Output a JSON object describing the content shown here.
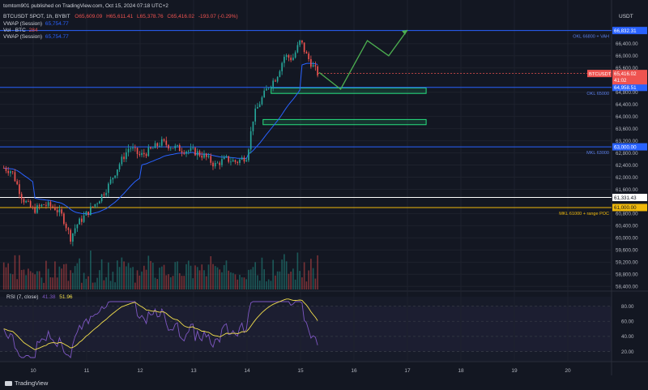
{
  "header": {
    "publisher": "tomtom901 published on TradingView.com, Oct 15, 2024 07:18 UTC+2",
    "symbol": "BTCUSDT SPOT, 1h, BYBIT",
    "ohlc": {
      "o": "O65,609.09",
      "h": "H65,611.41",
      "l": "L65,378.76",
      "c": "C65,416.02",
      "chg": "-193.07 (-0.29%)"
    },
    "vwap1_label": "VWAP (Session)",
    "vwap1_value": "65,754.77",
    "vol_label": "Vol · BTC",
    "vol_value": "284",
    "vwap2_label": "VWAP (Session)",
    "vwap2_value": "65,754.77",
    "currency": "USDT"
  },
  "colors": {
    "bg": "#131722",
    "up": "#26a69a",
    "down": "#ef5350",
    "level_blue": "#2962ff",
    "level_white": "#ffffff",
    "level_orange": "#f0b90b",
    "zone": "#26e07f",
    "projection": "#4caf50",
    "vwap": "#2962ff",
    "rsi": "#7e57c2",
    "rsi_ma": "#f4e04d"
  },
  "levels": [
    {
      "price": 66832.31,
      "value": "66,832.31",
      "name": "OKL 66800 + VAH",
      "color": "blue"
    },
    {
      "price": 64958.51,
      "value": "64,958.51",
      "name": "OKL 65000",
      "color": "blue"
    },
    {
      "price": 63000.0,
      "value": "63,000.00",
      "name": "MKL 63000",
      "color": "blue"
    },
    {
      "price": 61331.43,
      "value": "61,331.43",
      "name": "",
      "color": "white"
    },
    {
      "price": 61000.0,
      "value": "61,000.00",
      "name": "MKL 61000 + range POC",
      "color": "orange"
    }
  ],
  "current": {
    "label": "BTCUSDT",
    "price": "65,416.02",
    "countdown": "41:02"
  },
  "price_axis": [
    "66,400.00",
    "66,000.00",
    "65,600.00",
    "64,800.00",
    "64,400.00",
    "64,000.00",
    "63,600.00",
    "63,200.00",
    "62,800.00",
    "62,400.00",
    "62,000.00",
    "61,600.00",
    "60,800.00",
    "60,400.00",
    "60,000.00",
    "59,600.00",
    "59,200.00",
    "58,800.00",
    "58,400.00"
  ],
  "rsi": {
    "label": "RSI (7, close)",
    "value1": "41.38",
    "value2": "51.96",
    "axis": [
      "80.00",
      "60.00",
      "40.00",
      "20.00"
    ]
  },
  "time_axis": [
    "10",
    "11",
    "12",
    "13",
    "14",
    "15",
    "16",
    "17",
    "18",
    "19",
    "20"
  ],
  "footer": {
    "brand": "TradingView"
  },
  "chart_data": {
    "type": "candlestick",
    "title": "BTCUSDT SPOT, 1h, BYBIT",
    "ylim": [
      58300,
      67050
    ],
    "x_days": [
      "10",
      "11",
      "12",
      "13",
      "14",
      "15",
      "16",
      "17",
      "18",
      "19",
      "20"
    ],
    "price_path": [
      [
        9.45,
        62300
      ],
      [
        9.6,
        62200
      ],
      [
        9.8,
        61300
      ],
      [
        10.0,
        60900
      ],
      [
        10.2,
        61100
      ],
      [
        10.4,
        61000
      ],
      [
        10.55,
        60700
      ],
      [
        10.7,
        60000
      ],
      [
        10.8,
        60400
      ],
      [
        11.0,
        60800
      ],
      [
        11.2,
        61200
      ],
      [
        11.4,
        61700
      ],
      [
        11.6,
        62400
      ],
      [
        11.8,
        63000
      ],
      [
        12.0,
        62700
      ],
      [
        12.2,
        62900
      ],
      [
        12.4,
        63150
      ],
      [
        12.6,
        63000
      ],
      [
        12.8,
        62900
      ],
      [
        13.0,
        62850
      ],
      [
        13.2,
        62700
      ],
      [
        13.4,
        62400
      ],
      [
        13.6,
        62600
      ],
      [
        13.8,
        62500
      ],
      [
        14.0,
        62700
      ],
      [
        14.12,
        64000
      ],
      [
        14.25,
        64500
      ],
      [
        14.4,
        65000
      ],
      [
        14.55,
        65300
      ],
      [
        14.7,
        66000
      ],
      [
        14.85,
        65900
      ],
      [
        15.0,
        66500
      ],
      [
        15.1,
        66050
      ],
      [
        15.25,
        65600
      ],
      [
        15.32,
        65420
      ]
    ],
    "zones": [
      {
        "from": 64760,
        "to": 64940,
        "x_start": 14.45,
        "x_end": 17.35
      },
      {
        "from": 63730,
        "to": 63900,
        "x_start": 14.3,
        "x_end": 17.35
      }
    ],
    "projection": [
      [
        15.35,
        65450
      ],
      [
        15.75,
        64900
      ],
      [
        16.25,
        66500
      ],
      [
        16.65,
        66000
      ],
      [
        17.0,
        66850
      ]
    ],
    "rsi_last": 41.38,
    "rsi_ma_last": 51.96,
    "volume_last": 284
  }
}
